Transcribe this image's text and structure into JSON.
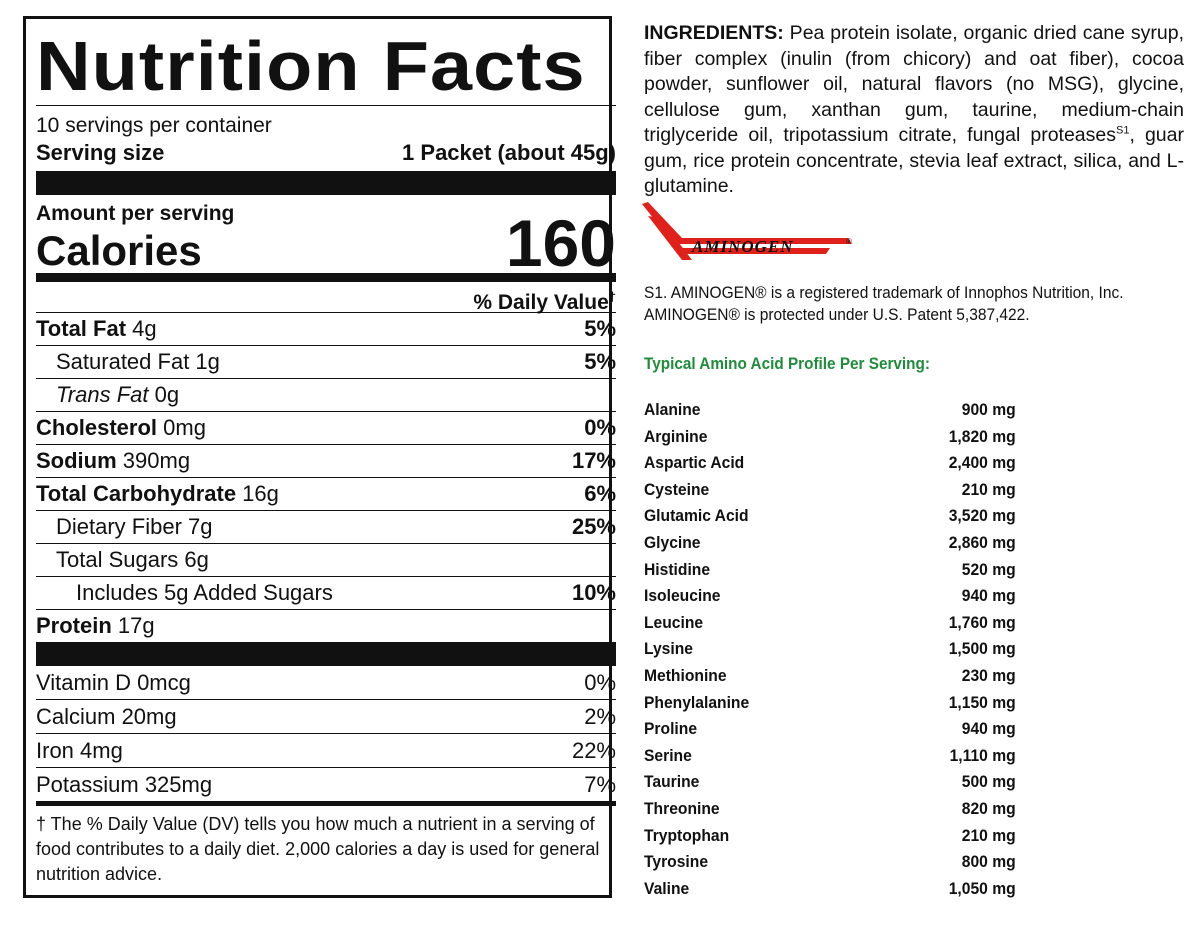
{
  "nutrition": {
    "title": "Nutrition Facts",
    "servings_per_container": "10 servings per container",
    "serving_size_label": "Serving size",
    "serving_size_value": "1 Packet (about 45g)",
    "amount_per_serving": "Amount per serving",
    "calories_label": "Calories",
    "calories_value": "160",
    "daily_value_header": "% Daily Value",
    "daily_value_mark": "†",
    "nutrients": [
      {
        "name": "Total Fat",
        "amount": " 4g",
        "dv": "5%"
      },
      {
        "name": "Saturated Fat",
        "amount": " 1g",
        "dv": "5%"
      },
      {
        "name": "Trans",
        "name_rest": " Fat",
        "amount": " 0g",
        "dv": ""
      },
      {
        "name": "Cholesterol",
        "amount": " 0mg",
        "dv": "0%"
      },
      {
        "name": "Sodium",
        "amount": " 390mg",
        "dv": "17%"
      },
      {
        "name": "Total Carbohydrate",
        "amount": " 16g",
        "dv": "6%"
      },
      {
        "name": "Dietary Fiber",
        "amount": " 7g",
        "dv": "25%"
      },
      {
        "name": "Total Sugars",
        "amount": " 6g",
        "dv": ""
      },
      {
        "name": "Includes 5g Added Sugars",
        "amount": "",
        "dv": "10%"
      },
      {
        "name": "Protein",
        "amount": " 17g",
        "dv": ""
      }
    ],
    "vitamins": [
      {
        "label": "Vitamin D 0mcg",
        "dv": "0%"
      },
      {
        "label": "Calcium 20mg",
        "dv": "2%"
      },
      {
        "label": "Iron 4mg",
        "dv": "22%"
      },
      {
        "label": "Potassium 325mg",
        "dv": "7%"
      }
    ],
    "footnote": "† The % Daily Value (DV) tells you how much a nutrient in a serving of food contributes to a daily diet. 2,000 calories a day is used for general nutrition advice."
  },
  "ingredients": {
    "label": "INGREDIENTS:",
    "text_before_sup": " Pea protein isolate, organic dried cane syrup, fiber complex (inulin (from chicory) and oat fiber), cocoa powder, sunflower oil, natural flavors (no MSG), glycine, cellulose gum, xanthan gum, taurine, medium-chain triglyceride oil, tripotassium citrate, fungal proteases",
    "sup": "S1",
    "text_after_sup": ", guar gum, rice protein concentrate, stevia leaf extract, silica, and L-glutamine."
  },
  "logo": {
    "text": "AMINOGEN",
    "mark": "®",
    "color": "#e0201b"
  },
  "trademark_note": "S1. AMINOGEN® is a registered trademark of Innophos Nutrition, Inc. AMINOGEN® is protected under U.S. Patent 5,387,422.",
  "amino_profile": {
    "heading": "Typical Amino Acid Profile Per Serving:",
    "heading_color": "#1f8c3b",
    "rows": [
      {
        "name": "Alanine",
        "amount": "900 mg"
      },
      {
        "name": "Arginine",
        "amount": "1,820 mg"
      },
      {
        "name": "Aspartic Acid",
        "amount": "2,400 mg"
      },
      {
        "name": "Cysteine",
        "amount": "210 mg"
      },
      {
        "name": "Glutamic Acid",
        "amount": "3,520 mg"
      },
      {
        "name": "Glycine",
        "amount": "2,860 mg"
      },
      {
        "name": "Histidine",
        "amount": "520 mg"
      },
      {
        "name": "Isoleucine",
        "amount": "940 mg"
      },
      {
        "name": "Leucine",
        "amount": "1,760 mg"
      },
      {
        "name": "Lysine",
        "amount": "1,500 mg"
      },
      {
        "name": "Methionine",
        "amount": "230 mg"
      },
      {
        "name": "Phenylalanine",
        "amount": "1,150 mg"
      },
      {
        "name": "Proline",
        "amount": "940 mg"
      },
      {
        "name": "Serine",
        "amount": "1,110 mg"
      },
      {
        "name": "Taurine",
        "amount": "500 mg"
      },
      {
        "name": "Threonine",
        "amount": "820 mg"
      },
      {
        "name": "Tryptophan",
        "amount": "210 mg"
      },
      {
        "name": "Tyrosine",
        "amount": "800 mg"
      },
      {
        "name": "Valine",
        "amount": "1,050 mg"
      }
    ]
  }
}
